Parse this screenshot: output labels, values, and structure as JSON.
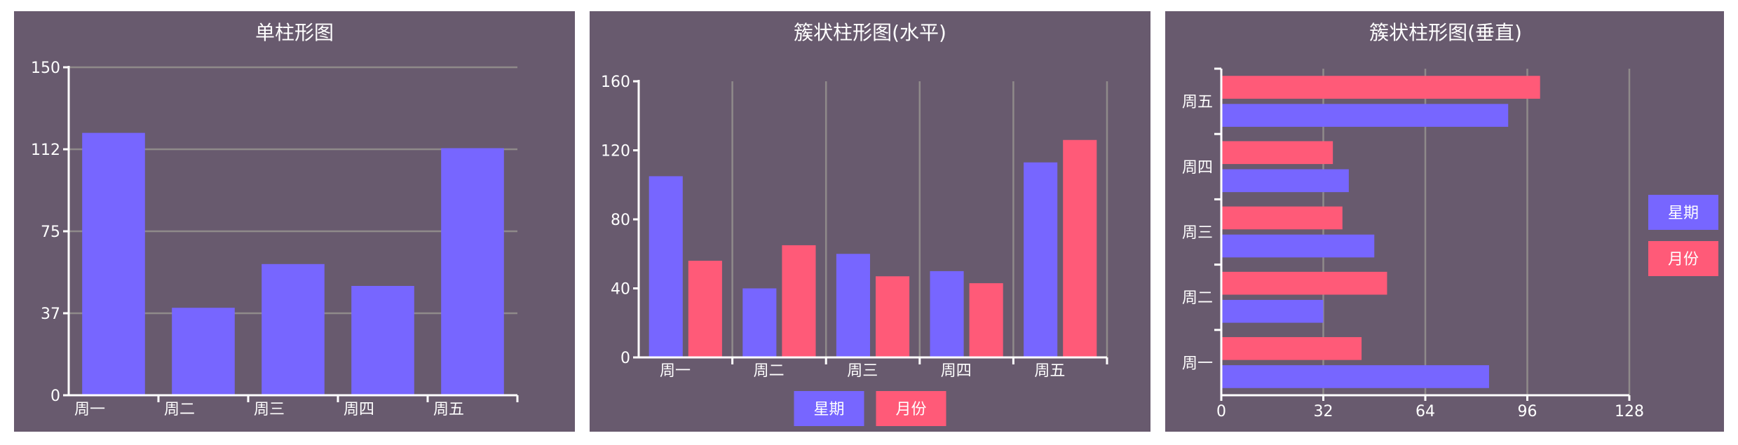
{
  "colors": {
    "background": "#685A6E",
    "series1": "#7766FF",
    "series2": "#FF5A78",
    "text": "#FFFFFF",
    "grid": "#8F8A8A"
  },
  "chart_data": [
    {
      "type": "bar",
      "orientation": "vertical",
      "title": "单柱形图",
      "categories": [
        "周一",
        "周二",
        "周三",
        "周四",
        "周五"
      ],
      "series": [
        {
          "values": [
            120,
            40,
            60,
            50,
            113
          ]
        }
      ],
      "ylim": [
        0,
        150
      ],
      "yticks": [
        "0",
        "37",
        "75",
        "112",
        "150"
      ],
      "grid": true,
      "legend": null
    },
    {
      "type": "bar",
      "orientation": "vertical",
      "title": "簇状柱形图(水平)",
      "categories": [
        "周一",
        "周二",
        "周三",
        "周四",
        "周五"
      ],
      "series": [
        {
          "name": "星期",
          "values": [
            105,
            40,
            60,
            50,
            113
          ]
        },
        {
          "name": "月份",
          "values": [
            56,
            65,
            47,
            43,
            126
          ]
        }
      ],
      "ylim": [
        0,
        160
      ],
      "yticks": [
        "0",
        "40",
        "80",
        "120",
        "160"
      ],
      "grid": true,
      "legend": "bottom"
    },
    {
      "type": "bar",
      "orientation": "horizontal",
      "title": "簇状柱形图(垂直)",
      "categories": [
        "周一",
        "周二",
        "周三",
        "周四",
        "周五"
      ],
      "series": [
        {
          "name": "星期",
          "values": [
            84,
            32,
            48,
            40,
            90
          ]
        },
        {
          "name": "月份",
          "values": [
            44,
            52,
            38,
            35,
            100
          ]
        }
      ],
      "xlim": [
        0,
        128
      ],
      "xticks": [
        "0",
        "32",
        "64",
        "96",
        "128"
      ],
      "grid": true,
      "legend": "right"
    }
  ]
}
